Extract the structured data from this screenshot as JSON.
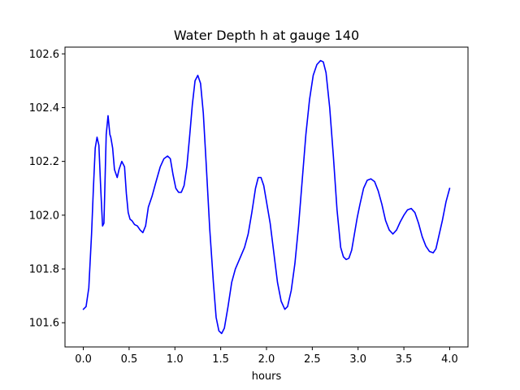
{
  "chart_data": {
    "type": "line",
    "title": "Water Depth h at gauge 140",
    "xlabel": "hours",
    "ylabel": "",
    "xlim": [
      -0.2,
      4.2
    ],
    "ylim": [
      101.51,
      102.625
    ],
    "xticks": [
      0.0,
      0.5,
      1.0,
      1.5,
      2.0,
      2.5,
      3.0,
      3.5,
      4.0
    ],
    "xtick_labels": [
      "0.0",
      "0.5",
      "1.0",
      "1.5",
      "2.0",
      "2.5",
      "3.0",
      "3.5",
      "4.0"
    ],
    "yticks": [
      101.6,
      101.8,
      102.0,
      102.2,
      102.4,
      102.6
    ],
    "ytick_labels": [
      "101.6",
      "101.8",
      "102.0",
      "102.2",
      "102.4",
      "102.6"
    ],
    "grid": false,
    "legend": "none",
    "series": [
      {
        "color": "#0000ff",
        "x": [
          0.0,
          0.03,
          0.06,
          0.09,
          0.11,
          0.13,
          0.15,
          0.17,
          0.19,
          0.21,
          0.225,
          0.235,
          0.25,
          0.27,
          0.29,
          0.3,
          0.32,
          0.34,
          0.37,
          0.39,
          0.42,
          0.45,
          0.47,
          0.49,
          0.51,
          0.53,
          0.56,
          0.59,
          0.62,
          0.65,
          0.68,
          0.71,
          0.75,
          0.79,
          0.84,
          0.88,
          0.92,
          0.95,
          0.98,
          1.01,
          1.04,
          1.07,
          1.1,
          1.13,
          1.16,
          1.19,
          1.22,
          1.25,
          1.28,
          1.31,
          1.34,
          1.38,
          1.42,
          1.45,
          1.48,
          1.51,
          1.54,
          1.58,
          1.62,
          1.66,
          1.71,
          1.76,
          1.8,
          1.84,
          1.88,
          1.91,
          1.94,
          1.97,
          2.0,
          2.04,
          2.08,
          2.12,
          2.16,
          2.2,
          2.23,
          2.27,
          2.31,
          2.35,
          2.39,
          2.43,
          2.47,
          2.51,
          2.55,
          2.59,
          2.62,
          2.65,
          2.69,
          2.73,
          2.77,
          2.81,
          2.84,
          2.87,
          2.9,
          2.93,
          2.96,
          2.99,
          3.02,
          3.06,
          3.1,
          3.14,
          3.18,
          3.22,
          3.26,
          3.3,
          3.34,
          3.38,
          3.42,
          3.46,
          3.5,
          3.54,
          3.58,
          3.62,
          3.66,
          3.7,
          3.74,
          3.78,
          3.82,
          3.85,
          3.88,
          3.92,
          3.96,
          4.0
        ],
        "values": [
          101.65,
          101.66,
          101.73,
          101.93,
          102.1,
          102.25,
          102.29,
          102.26,
          102.1,
          101.96,
          101.97,
          102.1,
          102.3,
          102.37,
          102.3,
          102.29,
          102.25,
          102.17,
          102.14,
          102.17,
          102.2,
          102.18,
          102.08,
          102.01,
          101.985,
          101.98,
          101.965,
          101.96,
          101.945,
          101.935,
          101.96,
          102.03,
          102.07,
          102.12,
          102.18,
          102.21,
          102.22,
          102.21,
          102.15,
          102.1,
          102.085,
          102.085,
          102.11,
          102.18,
          102.29,
          102.41,
          102.5,
          102.52,
          102.49,
          102.38,
          102.2,
          101.95,
          101.75,
          101.62,
          101.57,
          101.56,
          101.58,
          101.66,
          101.75,
          101.8,
          101.84,
          101.88,
          101.93,
          102.01,
          102.1,
          102.14,
          102.14,
          102.11,
          102.05,
          101.97,
          101.86,
          101.75,
          101.68,
          101.65,
          101.66,
          101.72,
          101.82,
          101.96,
          102.13,
          102.3,
          102.43,
          102.52,
          102.56,
          102.575,
          102.57,
          102.53,
          102.4,
          102.22,
          102.02,
          101.88,
          101.845,
          101.835,
          101.84,
          101.87,
          101.93,
          101.99,
          102.04,
          102.1,
          102.13,
          102.135,
          102.125,
          102.09,
          102.04,
          101.98,
          101.945,
          101.93,
          101.945,
          101.975,
          102.0,
          102.02,
          102.025,
          102.01,
          101.97,
          101.92,
          101.885,
          101.865,
          101.86,
          101.875,
          101.92,
          101.98,
          102.05,
          102.1
        ]
      }
    ]
  }
}
